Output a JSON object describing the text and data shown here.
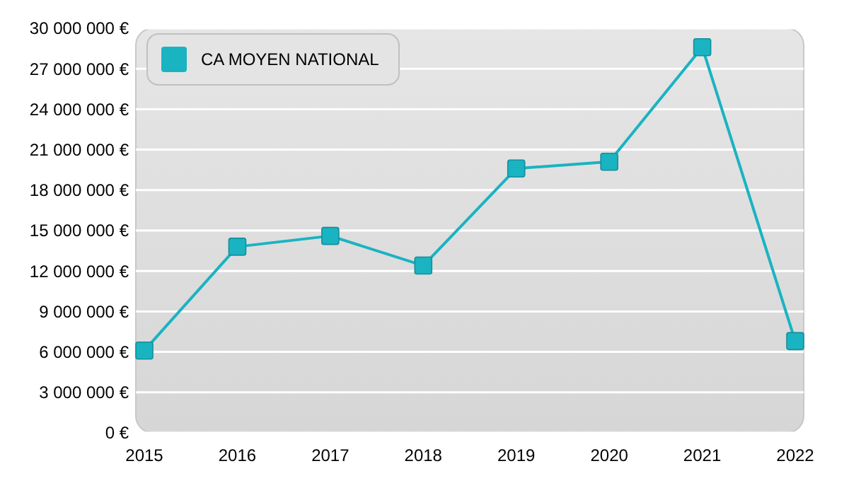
{
  "chart_data": {
    "type": "line",
    "categories": [
      "2015",
      "2016",
      "2017",
      "2018",
      "2019",
      "2020",
      "2021",
      "2022"
    ],
    "series": [
      {
        "name": "CA MOYEN NATIONAL",
        "color": "#1ab3c2",
        "values": [
          6100000,
          13800000,
          14600000,
          12400000,
          19600000,
          20100000,
          28600000,
          6800000
        ]
      }
    ],
    "ylim": [
      0,
      30000000
    ],
    "yticks": [
      {
        "value": 0,
        "label": "0 €"
      },
      {
        "value": 3000000,
        "label": "3 000 000 €"
      },
      {
        "value": 6000000,
        "label": "6 000 000 €"
      },
      {
        "value": 9000000,
        "label": "9 000 000 €"
      },
      {
        "value": 12000000,
        "label": "12 000 000 €"
      },
      {
        "value": 15000000,
        "label": "15 000 000 €"
      },
      {
        "value": 18000000,
        "label": "18 000 000 €"
      },
      {
        "value": 21000000,
        "label": "21 000 000 €"
      },
      {
        "value": 24000000,
        "label": "24 000 000 €"
      },
      {
        "value": 27000000,
        "label": "27 000 000 €"
      },
      {
        "value": 30000000,
        "label": "30 000 000 €"
      }
    ],
    "grid": "y",
    "legend": "top left",
    "marker": "square",
    "line_style": "solid"
  }
}
